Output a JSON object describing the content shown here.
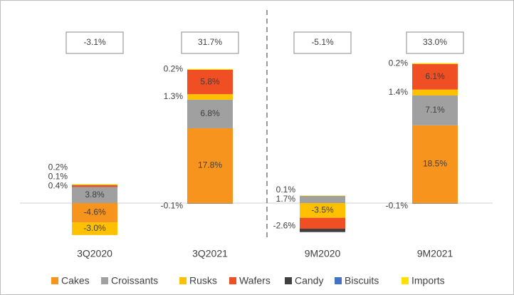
{
  "chart_data": {
    "type": "stacked_bar",
    "categories": [
      "3Q2020",
      "3Q2021",
      "9M2020",
      "9M2021"
    ],
    "series": [
      {
        "name": "Cakes",
        "color": "#F7941D",
        "values": [
          -4.6,
          17.8,
          null,
          18.5
        ],
        "value_labels": [
          "-4.6%",
          "17.8%",
          null,
          "18.5%"
        ]
      },
      {
        "name": "Croissants",
        "color": "#A0A0A0",
        "values": [
          3.8,
          6.8,
          1.7,
          7.1
        ],
        "value_labels": [
          "3.8%",
          "6.8%",
          "1.7%",
          "7.1%"
        ]
      },
      {
        "name": "Rusks",
        "color": "#FFC000",
        "values": [
          -3.0,
          1.3,
          -3.5,
          1.4
        ],
        "value_labels": [
          "-3.0%",
          "1.3%",
          "-3.5%",
          "1.4%"
        ]
      },
      {
        "name": "Wafers",
        "color": "#F04E23",
        "values": [
          0.4,
          5.8,
          -2.6,
          6.1
        ],
        "value_labels": [
          "0.4%",
          "5.8%",
          "-2.6%",
          "6.1%"
        ]
      },
      {
        "name": "Candy",
        "color": "#404040",
        "values": [
          0.1,
          -0.1,
          -0.8,
          -0.1
        ],
        "value_labels": [
          "0.1%",
          "-0.1%",
          null,
          "-0.1%"
        ]
      },
      {
        "name": "Biscuits",
        "color": "#4472C4",
        "values": [
          null,
          null,
          null,
          null
        ],
        "value_labels": [
          null,
          null,
          null,
          null
        ]
      },
      {
        "name": "Imports",
        "color": "#FFE000",
        "values": [
          0.2,
          0.2,
          0.1,
          0.2
        ],
        "value_labels": [
          "0.2%",
          "0.2%",
          "0.1%",
          "0.2%"
        ]
      }
    ],
    "totals": [
      -3.1,
      31.7,
      -5.1,
      33.0
    ],
    "total_labels": [
      "-3.1%",
      "31.7%",
      "-5.1%",
      "33.0%"
    ]
  }
}
